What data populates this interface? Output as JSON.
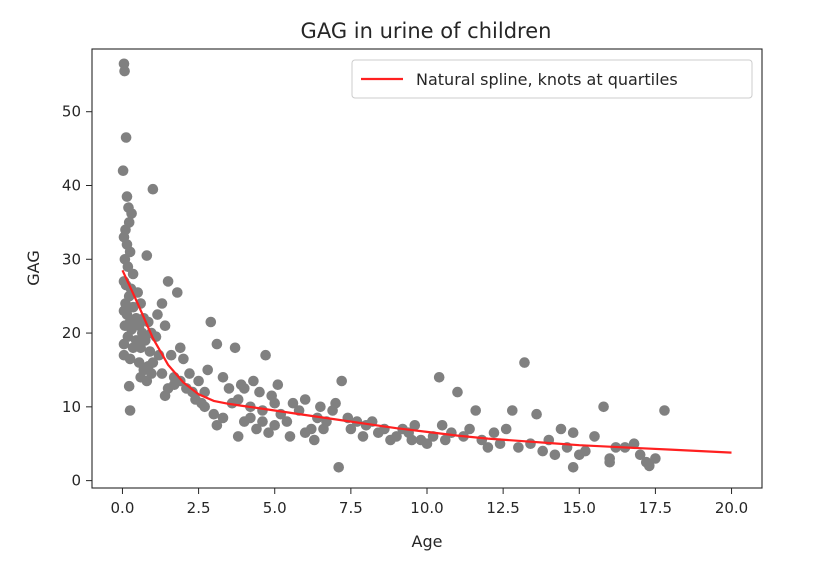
{
  "chart_data": {
    "type": "scatter",
    "title": "GAG in urine of children",
    "xlabel": "Age",
    "ylabel": "GAG",
    "xlim": [
      -1.0,
      21.0
    ],
    "ylim": [
      -1.0,
      58.5
    ],
    "x_ticks": [
      0.0,
      2.5,
      5.0,
      7.5,
      10.0,
      12.5,
      15.0,
      17.5,
      20.0
    ],
    "x_tick_labels": [
      "0.0",
      "2.5",
      "5.0",
      "7.5",
      "10.0",
      "12.5",
      "15.0",
      "17.5",
      "20.0"
    ],
    "y_ticks": [
      0,
      10,
      20,
      30,
      40,
      50
    ],
    "y_tick_labels": [
      "0",
      "10",
      "20",
      "30",
      "40",
      "50"
    ],
    "grid": false,
    "legend": {
      "position": "top-right",
      "entries": [
        "Natural spline, knots at quartiles"
      ]
    },
    "colors": {
      "points": "#808080",
      "line": "#ff2020",
      "axes": "#262626"
    },
    "series": [
      {
        "name": "GAG observations",
        "kind": "scatter",
        "points": [
          [
            0.05,
            56.5
          ],
          [
            0.07,
            55.5
          ],
          [
            0.12,
            46.5
          ],
          [
            0.02,
            42.0
          ],
          [
            0.15,
            38.5
          ],
          [
            0.2,
            37.0
          ],
          [
            0.3,
            36.2
          ],
          [
            0.22,
            35.0
          ],
          [
            0.1,
            34.0
          ],
          [
            0.05,
            33.0
          ],
          [
            0.15,
            32.0
          ],
          [
            0.25,
            31.0
          ],
          [
            0.08,
            30.0
          ],
          [
            0.18,
            29.0
          ],
          [
            0.35,
            28.0
          ],
          [
            0.05,
            27.0
          ],
          [
            0.12,
            26.5
          ],
          [
            0.28,
            26.0
          ],
          [
            0.4,
            25.5
          ],
          [
            0.22,
            25.0
          ],
          [
            0.5,
            25.5
          ],
          [
            0.6,
            24.0
          ],
          [
            0.1,
            24.0
          ],
          [
            0.35,
            23.5
          ],
          [
            0.05,
            23.0
          ],
          [
            0.15,
            22.5
          ],
          [
            0.45,
            22.0
          ],
          [
            0.7,
            22.0
          ],
          [
            0.25,
            21.5
          ],
          [
            0.55,
            21.0
          ],
          [
            0.85,
            21.5
          ],
          [
            0.08,
            21.0
          ],
          [
            0.3,
            20.5
          ],
          [
            0.65,
            20.0
          ],
          [
            0.95,
            20.0
          ],
          [
            0.18,
            19.5
          ],
          [
            0.45,
            19.0
          ],
          [
            0.75,
            19.0
          ],
          [
            1.1,
            19.5
          ],
          [
            0.05,
            18.5
          ],
          [
            0.35,
            18.0
          ],
          [
            0.6,
            18.0
          ],
          [
            0.9,
            17.5
          ],
          [
            1.2,
            17.0
          ],
          [
            0.05,
            17.0
          ],
          [
            0.25,
            16.5
          ],
          [
            0.55,
            16.0
          ],
          [
            0.85,
            15.5
          ],
          [
            1.0,
            16.0
          ],
          [
            0.7,
            15.0
          ],
          [
            0.95,
            14.5
          ],
          [
            1.3,
            14.5
          ],
          [
            0.6,
            14.0
          ],
          [
            0.8,
            13.5
          ],
          [
            0.22,
            12.8
          ],
          [
            0.25,
            9.5
          ],
          [
            0.8,
            30.5
          ],
          [
            1.0,
            39.5
          ],
          [
            1.15,
            22.5
          ],
          [
            1.3,
            24.0
          ],
          [
            1.4,
            21.0
          ],
          [
            1.5,
            27.0
          ],
          [
            1.6,
            17.0
          ],
          [
            1.7,
            14.0
          ],
          [
            1.8,
            25.5
          ],
          [
            1.9,
            18.0
          ],
          [
            2.0,
            16.5
          ],
          [
            1.4,
            11.5
          ],
          [
            1.5,
            12.5
          ],
          [
            1.7,
            13.0
          ],
          [
            1.9,
            13.5
          ],
          [
            2.1,
            12.5
          ],
          [
            2.2,
            14.5
          ],
          [
            2.3,
            12.0
          ],
          [
            2.4,
            11.0
          ],
          [
            2.5,
            13.5
          ],
          [
            2.6,
            10.5
          ],
          [
            2.7,
            12.0
          ],
          [
            2.8,
            15.0
          ],
          [
            2.9,
            21.5
          ],
          [
            3.1,
            18.5
          ],
          [
            3.3,
            14.0
          ],
          [
            3.5,
            12.5
          ],
          [
            3.7,
            18.0
          ],
          [
            3.9,
            13.0
          ],
          [
            2.7,
            10.0
          ],
          [
            3.0,
            9.0
          ],
          [
            3.1,
            7.5
          ],
          [
            3.3,
            8.5
          ],
          [
            3.6,
            10.5
          ],
          [
            3.8,
            11.0
          ],
          [
            4.0,
            12.5
          ],
          [
            4.2,
            10.0
          ],
          [
            4.3,
            13.5
          ],
          [
            4.5,
            12.0
          ],
          [
            4.6,
            9.5
          ],
          [
            4.7,
            17.0
          ],
          [
            4.9,
            11.5
          ],
          [
            5.0,
            10.5
          ],
          [
            5.1,
            13.0
          ],
          [
            3.8,
            6.0
          ],
          [
            4.0,
            8.0
          ],
          [
            4.2,
            8.5
          ],
          [
            4.4,
            7.0
          ],
          [
            4.6,
            8.0
          ],
          [
            4.8,
            6.5
          ],
          [
            5.0,
            7.5
          ],
          [
            5.2,
            9.0
          ],
          [
            5.4,
            8.0
          ],
          [
            5.6,
            10.5
          ],
          [
            5.8,
            9.5
          ],
          [
            6.0,
            11.0
          ],
          [
            6.2,
            7.0
          ],
          [
            6.4,
            8.5
          ],
          [
            6.5,
            10.0
          ],
          [
            6.7,
            8.0
          ],
          [
            6.9,
            9.5
          ],
          [
            7.1,
            1.8
          ],
          [
            5.5,
            6.0
          ],
          [
            6.0,
            6.5
          ],
          [
            6.3,
            5.5
          ],
          [
            6.6,
            7.0
          ],
          [
            7.0,
            10.5
          ],
          [
            7.2,
            13.5
          ],
          [
            7.4,
            8.5
          ],
          [
            7.5,
            7.0
          ],
          [
            7.7,
            8.0
          ],
          [
            7.9,
            6.0
          ],
          [
            8.0,
            7.5
          ],
          [
            8.2,
            8.0
          ],
          [
            8.4,
            6.5
          ],
          [
            8.6,
            7.0
          ],
          [
            8.8,
            5.5
          ],
          [
            9.0,
            6.0
          ],
          [
            9.2,
            7.0
          ],
          [
            9.4,
            6.5
          ],
          [
            9.6,
            7.5
          ],
          [
            9.8,
            5.5
          ],
          [
            10.0,
            5.0
          ],
          [
            10.2,
            6.0
          ],
          [
            10.4,
            14.0
          ],
          [
            10.6,
            5.5
          ],
          [
            10.8,
            6.5
          ],
          [
            11.0,
            12.0
          ],
          [
            11.2,
            6.0
          ],
          [
            11.4,
            7.0
          ],
          [
            11.6,
            9.5
          ],
          [
            11.8,
            5.5
          ],
          [
            12.0,
            4.5
          ],
          [
            12.2,
            6.5
          ],
          [
            12.4,
            5.0
          ],
          [
            12.6,
            7.0
          ],
          [
            12.8,
            9.5
          ],
          [
            13.0,
            4.5
          ],
          [
            13.2,
            16.0
          ],
          [
            13.4,
            5.0
          ],
          [
            13.6,
            9.0
          ],
          [
            13.8,
            4.0
          ],
          [
            14.0,
            5.5
          ],
          [
            14.2,
            3.5
          ],
          [
            14.4,
            7.0
          ],
          [
            14.6,
            4.5
          ],
          [
            14.8,
            6.5
          ],
          [
            15.0,
            3.5
          ],
          [
            15.2,
            4.0
          ],
          [
            15.5,
            6.0
          ],
          [
            15.8,
            10.0
          ],
          [
            16.0,
            3.0
          ],
          [
            16.2,
            4.5
          ],
          [
            16.5,
            4.5
          ],
          [
            16.8,
            5.0
          ],
          [
            17.0,
            3.5
          ],
          [
            17.2,
            2.5
          ],
          [
            17.5,
            3.0
          ],
          [
            17.8,
            9.5
          ],
          [
            14.8,
            1.8
          ],
          [
            16.0,
            2.5
          ],
          [
            17.3,
            2.0
          ],
          [
            10.5,
            7.5
          ],
          [
            9.5,
            5.5
          ]
        ]
      },
      {
        "name": "Natural spline, knots at quartiles",
        "kind": "line",
        "x": [
          0.0,
          0.5,
          1.0,
          1.5,
          2.0,
          2.5,
          3.0,
          3.5,
          4.0,
          5.0,
          6.0,
          7.0,
          8.0,
          9.0,
          10.0,
          11.0,
          12.0,
          13.0,
          14.0,
          15.0,
          16.0,
          17.0,
          18.0,
          19.0,
          20.0
        ],
        "y": [
          28.5,
          24.0,
          19.3,
          15.7,
          13.3,
          11.7,
          10.8,
          10.4,
          10.1,
          9.5,
          8.9,
          8.3,
          7.7,
          7.1,
          6.6,
          6.1,
          5.7,
          5.4,
          5.1,
          4.8,
          4.6,
          4.4,
          4.2,
          4.0,
          3.8
        ]
      }
    ]
  }
}
